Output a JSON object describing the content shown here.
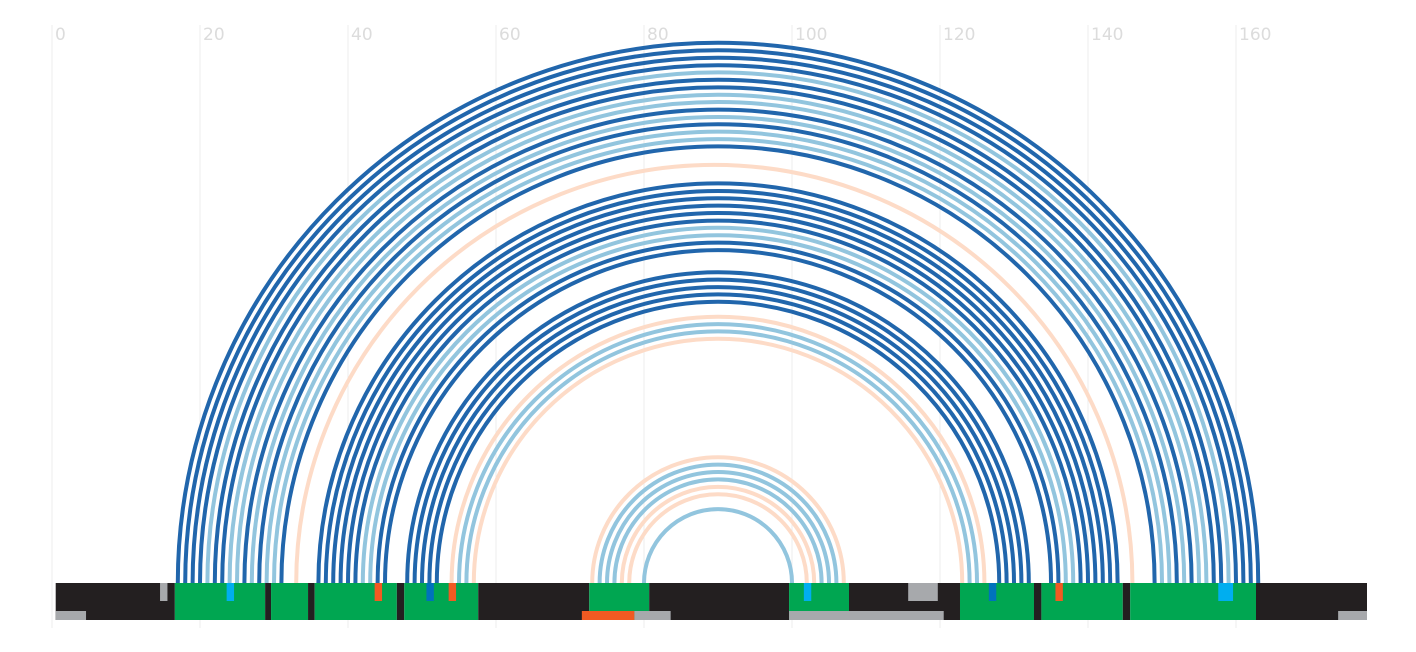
{
  "chart_data": {
    "type": "arc",
    "xlim": [
      0,
      177.7
    ],
    "xticks": [
      0,
      20,
      40,
      60,
      80,
      100,
      120,
      140,
      160
    ],
    "grid": true,
    "arcs": [
      {
        "start": 17,
        "end": 163,
        "color": "#2166ac"
      },
      {
        "start": 18,
        "end": 162,
        "color": "#2166ac"
      },
      {
        "start": 19,
        "end": 161,
        "color": "#2166ac"
      },
      {
        "start": 20,
        "end": 160,
        "color": "#2166ac"
      },
      {
        "start": 21,
        "end": 159,
        "color": "#92c5de"
      },
      {
        "start": 22,
        "end": 158,
        "color": "#2166ac"
      },
      {
        "start": 23,
        "end": 157,
        "color": "#2166ac"
      },
      {
        "start": 24,
        "end": 156,
        "color": "#92c5de"
      },
      {
        "start": 25,
        "end": 155,
        "color": "#92c5de"
      },
      {
        "start": 26,
        "end": 154,
        "color": "#2166ac"
      },
      {
        "start": 27,
        "end": 153,
        "color": "#92c5de"
      },
      {
        "start": 28,
        "end": 152,
        "color": "#2166ac"
      },
      {
        "start": 29,
        "end": 151,
        "color": "#92c5de"
      },
      {
        "start": 30,
        "end": 150,
        "color": "#92c5de"
      },
      {
        "start": 31,
        "end": 149,
        "color": "#2166ac"
      },
      {
        "start": 33,
        "end": 146,
        "color": "#fddbc7"
      },
      {
        "start": 36,
        "end": 144,
        "color": "#2166ac"
      },
      {
        "start": 37,
        "end": 143,
        "color": "#2166ac"
      },
      {
        "start": 38,
        "end": 142,
        "color": "#2166ac"
      },
      {
        "start": 39,
        "end": 141,
        "color": "#2166ac"
      },
      {
        "start": 40,
        "end": 140,
        "color": "#2166ac"
      },
      {
        "start": 41,
        "end": 139,
        "color": "#2166ac"
      },
      {
        "start": 42,
        "end": 138,
        "color": "#92c5de"
      },
      {
        "start": 43,
        "end": 137,
        "color": "#92c5de"
      },
      {
        "start": 44,
        "end": 136,
        "color": "#2166ac"
      },
      {
        "start": 45,
        "end": 135,
        "color": "#2166ac"
      },
      {
        "start": 48,
        "end": 132,
        "color": "#2166ac"
      },
      {
        "start": 49,
        "end": 131,
        "color": "#2166ac"
      },
      {
        "start": 50,
        "end": 130,
        "color": "#2166ac"
      },
      {
        "start": 51,
        "end": 129,
        "color": "#2166ac"
      },
      {
        "start": 52,
        "end": 128,
        "color": "#2166ac"
      },
      {
        "start": 54,
        "end": 126,
        "color": "#fddbc7"
      },
      {
        "start": 55,
        "end": 125,
        "color": "#92c5de"
      },
      {
        "start": 56,
        "end": 124,
        "color": "#92c5de"
      },
      {
        "start": 57,
        "end": 123,
        "color": "#fddbc7"
      },
      {
        "start": 73,
        "end": 107,
        "color": "#fddbc7"
      },
      {
        "start": 74,
        "end": 106,
        "color": "#92c5de"
      },
      {
        "start": 75,
        "end": 105,
        "color": "#92c5de"
      },
      {
        "start": 76,
        "end": 104,
        "color": "#92c5de"
      },
      {
        "start": 77,
        "end": 103,
        "color": "#fddbc7"
      },
      {
        "start": 78,
        "end": 102,
        "color": "#fddbc7"
      },
      {
        "start": 80,
        "end": 100,
        "color": "#92c5de"
      }
    ],
    "track": [
      {
        "start": 0.5,
        "end": 16.6,
        "color": "#231f20"
      },
      {
        "start": 16.6,
        "end": 28.8,
        "color": "#00a651"
      },
      {
        "start": 28.8,
        "end": 29.6,
        "color": "#231f20"
      },
      {
        "start": 29.6,
        "end": 34.6,
        "color": "#00a651"
      },
      {
        "start": 34.6,
        "end": 35.5,
        "color": "#231f20"
      },
      {
        "start": 35.5,
        "end": 46.6,
        "color": "#00a651"
      },
      {
        "start": 46.6,
        "end": 47.6,
        "color": "#231f20"
      },
      {
        "start": 47.6,
        "end": 57.6,
        "color": "#00a651"
      },
      {
        "start": 57.6,
        "end": 72.6,
        "color": "#231f20"
      },
      {
        "start": 72.6,
        "end": 80.7,
        "color": "#00a651"
      },
      {
        "start": 80.7,
        "end": 99.6,
        "color": "#231f20"
      },
      {
        "start": 99.6,
        "end": 107.7,
        "color": "#00a651"
      },
      {
        "start": 107.7,
        "end": 122.7,
        "color": "#231f20"
      },
      {
        "start": 122.7,
        "end": 132.7,
        "color": "#00a651"
      },
      {
        "start": 132.7,
        "end": 133.7,
        "color": "#231f20"
      },
      {
        "start": 133.7,
        "end": 144.7,
        "color": "#00a651"
      },
      {
        "start": 144.7,
        "end": 145.7,
        "color": "#231f20"
      },
      {
        "start": 145.7,
        "end": 162.7,
        "color": "#00a651"
      },
      {
        "start": 162.7,
        "end": 177.7,
        "color": "#231f20"
      }
    ],
    "track_bottom": [
      {
        "start": 0.5,
        "end": 4.6,
        "color": "#a7a9ac"
      },
      {
        "start": 71.6,
        "end": 78.7,
        "color": "#f15a22"
      },
      {
        "start": 78.7,
        "end": 83.6,
        "color": "#a7a9ac"
      },
      {
        "start": 99.6,
        "end": 120.5,
        "color": "#a7a9ac"
      },
      {
        "start": 173.8,
        "end": 177.7,
        "color": "#a7a9ac"
      }
    ],
    "track_top": [
      {
        "start": 115.7,
        "end": 119.7,
        "color": "#a7a9ac"
      },
      {
        "start": 14.6,
        "end": 15.6,
        "color": "#a7a9ac"
      },
      {
        "start": 23.6,
        "end": 24.6,
        "color": "#00aeef"
      },
      {
        "start": 43.6,
        "end": 44.6,
        "color": "#f15a22"
      },
      {
        "start": 50.6,
        "end": 51.6,
        "color": "#0072bc"
      },
      {
        "start": 53.6,
        "end": 54.6,
        "color": "#f15a22"
      },
      {
        "start": 101.6,
        "end": 102.6,
        "color": "#00aeef"
      },
      {
        "start": 126.6,
        "end": 127.6,
        "color": "#0072bc"
      },
      {
        "start": 135.6,
        "end": 136.6,
        "color": "#f15a22"
      },
      {
        "start": 157.6,
        "end": 159.6,
        "color": "#00aeef"
      }
    ]
  }
}
